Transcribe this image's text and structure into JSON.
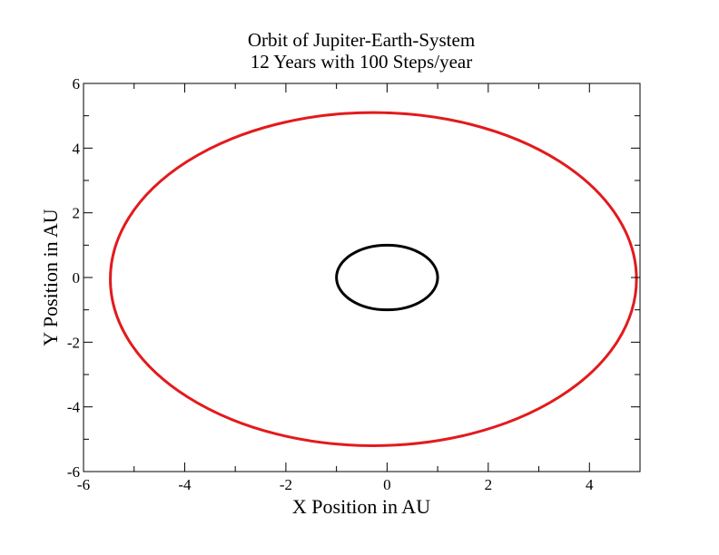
{
  "chart_data": {
    "type": "line",
    "title": "Orbit of Jupiter-Earth-System",
    "subtitle": "12 Years with 100 Steps/year",
    "xlabel": "X Position in AU",
    "ylabel": "Y Position in AU",
    "xlim": [
      -6,
      5
    ],
    "ylim": [
      -6,
      6
    ],
    "xticks": [
      -6,
      -4,
      -2,
      0,
      2,
      4
    ],
    "yticks": [
      -6,
      -4,
      -2,
      0,
      2,
      4,
      6
    ],
    "grid": false,
    "series": [
      {
        "color": "#e31a1c",
        "orbit": {
          "center_x": -0.27,
          "center_y": -0.05,
          "radius_x": 5.2,
          "radius_y": 5.15
        }
      },
      {
        "color": "#000000",
        "orbit": {
          "center_x": 0.0,
          "center_y": 0.0,
          "radius_x": 1.0,
          "radius_y": 1.0
        }
      }
    ]
  }
}
